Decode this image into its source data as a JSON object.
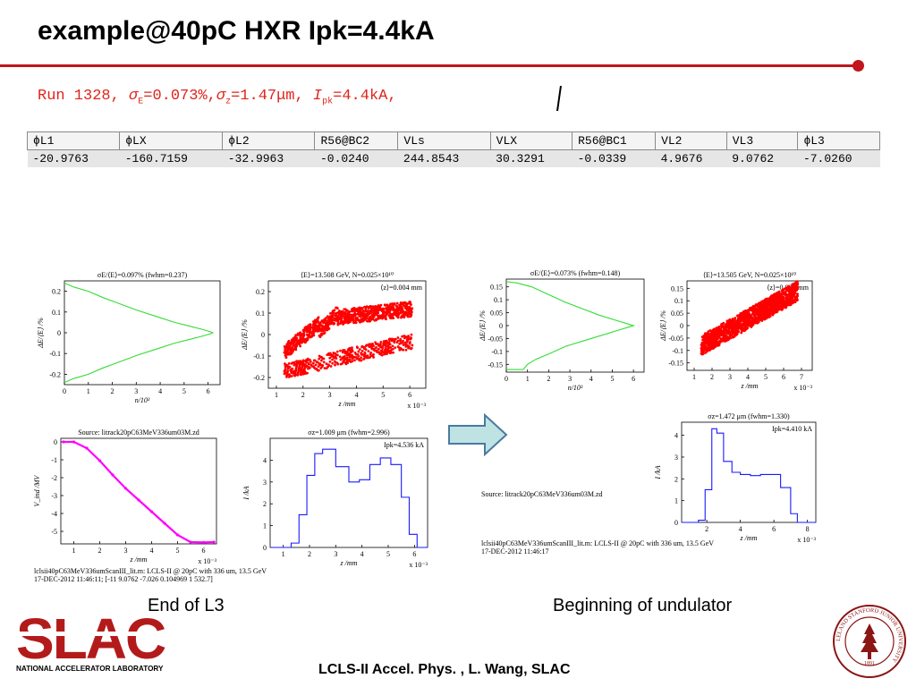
{
  "title": "example@40pC HXR  Ipk=4.4kA",
  "run_line": {
    "run": "Run 1328, ",
    "sigE_sym": "σ",
    "sigE_sub": "E",
    "sigE_val": "=0.073%,",
    "sigZ_sym": "σ",
    "sigZ_sub": "z",
    "sigZ_val": "=1.47μm, ",
    "ipk_sym": "I",
    "ipk_sub": "pk",
    "ipk_val": "=4.4kA,"
  },
  "params": {
    "headers": [
      "ϕL1",
      "ϕLX",
      "ϕL2",
      "R56@BC2",
      "VLs",
      "VLX",
      "R56@BC1",
      "VL2",
      "VL3",
      "ϕL3"
    ],
    "values": [
      "-20.9763",
      "-160.7159",
      "-32.9963",
      "-0.0240",
      "244.8543",
      "30.3291",
      "-0.0339",
      "4.9676",
      "9.0762",
      "-7.0260"
    ]
  },
  "labels": {
    "end": "End of L3",
    "begin": "Beginning of undulator"
  },
  "footer": "LCLS-II Accel. Phys. , L. Wang, SLAC",
  "logo": {
    "text": "SLAC",
    "subtitle": "NATIONAL ACCELERATOR LABORATORY",
    "seal_text": "LELAND STANFORD JUNIOR UNIVERSITY",
    "seal_year": "1891"
  },
  "colors": {
    "accent": "#c0161c",
    "run_text": "#e0251b",
    "green": "#33dd33",
    "red": "#ff0000",
    "blue": "#1a1aff",
    "magenta": "#ff00ff"
  },
  "icons": {
    "arrow": "right-arrow-icon"
  },
  "plots_left": {
    "footer1": "lclsii40pC63MeV336umScanIII_lit.m:  LCLS-II @ 20pC with 336 um, 13.5 GeV",
    "footer2": "17-DEC-2012 11:46:11;  [-11 9.0762 -7.026 0.104969 1 532.7]"
  },
  "plots_right": {
    "footer1": "lclsii40pC63MeV336umScanIII_lit.m:  LCLS-II @ 20pC with 336 um, 13.5 GeV",
    "footer2": "17-DEC-2012 11:46:17",
    "source": "Source: litrack20pC63MeV336um03M.zd"
  },
  "chart_data": [
    {
      "id": "L-A",
      "type": "line",
      "title": "σE/⟨E⟩=0.097% (fwhm=0.237)",
      "xlabel": "n/10³",
      "ylabel": "ΔE/⟨E⟩ /%",
      "xlim": [
        0,
        6.5
      ],
      "ylim": [
        -0.25,
        0.25
      ],
      "xticks": [
        "0",
        "1",
        "2",
        "3",
        "4",
        "5",
        "6"
      ],
      "yticks": [
        "-0.2",
        "-0.1",
        "0",
        "0.1",
        "0.2"
      ],
      "x": [
        0,
        0.4,
        1,
        1.6,
        2.3,
        3,
        3.8,
        4.6,
        5.3,
        5.8,
        6.1,
        6.2,
        6.1,
        5.8,
        5.3,
        4.6,
        3.8,
        3,
        2.3,
        1.6,
        1,
        0.4,
        0
      ],
      "y": [
        0.24,
        0.22,
        0.2,
        0.17,
        0.14,
        0.11,
        0.08,
        0.05,
        0.03,
        0.015,
        0.005,
        0,
        -0.005,
        -0.015,
        -0.03,
        -0.05,
        -0.08,
        -0.11,
        -0.14,
        -0.17,
        -0.2,
        -0.22,
        -0.24
      ]
    },
    {
      "id": "L-B",
      "type": "scatter",
      "title": "⟨E⟩=13.508 GeV, N=0.025×10¹⁰",
      "annotation": "⟨z⟩=0.004 mm",
      "xlabel": "z /mm",
      "ylabel": "ΔE/⟨E⟩ /%",
      "xexp": "x 10⁻³",
      "xlim": [
        0.7,
        6.6
      ],
      "ylim": [
        -0.25,
        0.25
      ],
      "xticks": [
        "1",
        "2",
        "3",
        "4",
        "5",
        "6"
      ],
      "yticks": [
        "-0.2",
        "-0.1",
        "0",
        "0.1",
        "0.2"
      ]
    },
    {
      "id": "L-C",
      "type": "line",
      "title": "Source: litrack20pC63MeV336um03M.zd",
      "xlabel": "z /mm",
      "ylabel": "V_ind /MV",
      "xexp": "x 10⁻³",
      "xlim": [
        0.5,
        6.5
      ],
      "ylim": [
        -5.7,
        0.2
      ],
      "xticks": [
        "1",
        "2",
        "3",
        "4",
        "5",
        "6"
      ],
      "yticks": [
        "0",
        "-1",
        "-2",
        "-3",
        "-4",
        "-5"
      ],
      "x": [
        0.6,
        1.0,
        1.5,
        2.0,
        2.5,
        3.0,
        3.5,
        4.0,
        4.5,
        5.0,
        5.5,
        6.0,
        6.4
      ],
      "y": [
        0,
        0,
        -0.35,
        -1.05,
        -1.85,
        -2.6,
        -3.25,
        -3.9,
        -4.55,
        -5.2,
        -5.6,
        -5.62,
        -5.6
      ]
    },
    {
      "id": "L-D",
      "type": "line",
      "title": "σz=1.009 μm (fwhm=2.996)",
      "annotation": "Ipk=4.536 kA",
      "xlabel": "z /mm",
      "ylabel": "I /kA",
      "xexp": "x 10⁻³",
      "xlim": [
        0.5,
        6.5
      ],
      "ylim": [
        0,
        5
      ],
      "xticks": [
        "1",
        "2",
        "3",
        "4",
        "5",
        "6"
      ],
      "yticks": [
        "0",
        "1",
        "2",
        "3",
        "4"
      ],
      "x": [
        0.5,
        1.0,
        1.3,
        1.6,
        1.9,
        2.2,
        2.5,
        3.0,
        3.5,
        3.9,
        4.3,
        4.7,
        5.1,
        5.5,
        5.8,
        6.1,
        6.5
      ],
      "y": [
        0,
        0,
        0.2,
        1.5,
        3.3,
        4.3,
        4.5,
        3.7,
        3.0,
        3.1,
        3.8,
        4.1,
        3.8,
        2.3,
        0.6,
        0,
        0
      ]
    },
    {
      "id": "R-A",
      "type": "line",
      "title": "σE/⟨E⟩=0.073% (fwhm=0.148)",
      "xlabel": "n/10³",
      "ylabel": "ΔE/⟨E⟩ /%",
      "xlim": [
        0,
        6.5
      ],
      "ylim": [
        -0.18,
        0.18
      ],
      "xticks": [
        "0",
        "1",
        "2",
        "3",
        "4",
        "5",
        "6"
      ],
      "yticks": [
        "-0.15",
        "-0.1",
        "-0.05",
        "0",
        "0.05",
        "0.1",
        "0.15"
      ],
      "x": [
        0,
        0.5,
        1.2,
        2,
        2.8,
        3.6,
        4.4,
        5.2,
        5.8,
        6.0,
        5.8,
        5.2,
        4.4,
        3.6,
        2.8,
        2,
        1.4,
        1.0,
        0.8,
        0.6,
        0
      ],
      "y": [
        0.17,
        0.165,
        0.15,
        0.12,
        0.09,
        0.065,
        0.04,
        0.02,
        0.005,
        0,
        -0.005,
        -0.02,
        -0.04,
        -0.06,
        -0.08,
        -0.11,
        -0.13,
        -0.15,
        -0.17,
        -0.17,
        -0.17
      ]
    },
    {
      "id": "R-B",
      "type": "scatter",
      "title": "⟨E⟩=13.505 GeV, N=0.025×10¹⁰",
      "annotation": "⟨z⟩=0.004 mm",
      "xlabel": "z /mm",
      "ylabel": "ΔE/⟨E⟩ /%",
      "xexp": "x 10⁻³",
      "xlim": [
        0.6,
        7.6
      ],
      "ylim": [
        -0.18,
        0.18
      ],
      "xticks": [
        "1",
        "2",
        "3",
        "4",
        "5",
        "6",
        "7"
      ],
      "yticks": [
        "-0.15",
        "-0.1",
        "-0.05",
        "0",
        "0.05",
        "0.1",
        "0.15"
      ]
    },
    {
      "id": "R-D",
      "type": "line",
      "title": "σz=1.472 μm (fwhm=1.330)",
      "annotation": "Ipk=4.410 kA",
      "xlabel": "z /mm",
      "ylabel": "I /kA",
      "xexp": "x 10⁻³",
      "xlim": [
        0.5,
        8.5
      ],
      "ylim": [
        0,
        4.6
      ],
      "xticks": [
        "2",
        "4",
        "6",
        "8"
      ],
      "yticks": [
        "0",
        "1",
        "2",
        "3",
        "4"
      ],
      "x": [
        0.5,
        1.0,
        1.5,
        1.9,
        2.3,
        2.6,
        3.0,
        3.5,
        4.0,
        4.6,
        5.2,
        5.8,
        6.4,
        7.0,
        7.4,
        8.5
      ],
      "y": [
        0,
        0,
        0.1,
        1.5,
        4.3,
        4.1,
        2.8,
        2.3,
        2.2,
        2.15,
        2.2,
        2.2,
        1.6,
        0.4,
        0,
        0
      ]
    }
  ]
}
